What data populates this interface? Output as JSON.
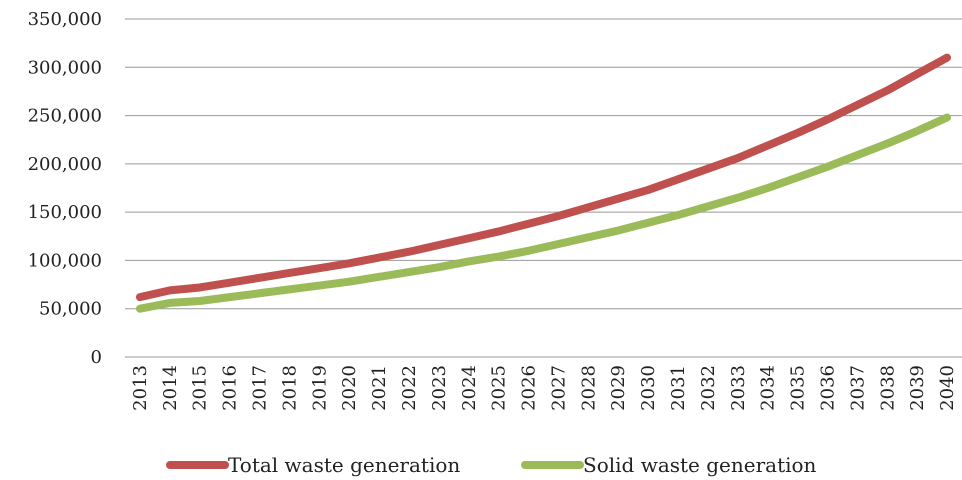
{
  "chart_data": {
    "type": "line",
    "categories": [
      "2013",
      "2014",
      "2015",
      "2016",
      "2017",
      "2018",
      "2019",
      "2020",
      "2021",
      "2022",
      "2023",
      "2024",
      "2025",
      "2026",
      "2027",
      "2028",
      "2029",
      "2030",
      "2031",
      "2032",
      "2033",
      "2034",
      "2035",
      "2036",
      "2037",
      "2038",
      "2039",
      "2040"
    ],
    "series": [
      {
        "name": "Total waste generation",
        "color": "#c0504d",
        "values": [
          62000,
          69000,
          72000,
          77000,
          82000,
          87000,
          92000,
          97000,
          103000,
          109000,
          116000,
          123000,
          130000,
          138000,
          146000,
          155000,
          164000,
          173000,
          184000,
          195000,
          206000,
          219000,
          232000,
          246000,
          261000,
          276000,
          293000,
          310000
        ]
      },
      {
        "name": "Solid waste generation",
        "color": "#9bbb59",
        "values": [
          50000,
          56000,
          58000,
          62000,
          66000,
          70000,
          74000,
          78000,
          83000,
          88000,
          93000,
          99000,
          104000,
          110000,
          117000,
          124000,
          131000,
          139000,
          147000,
          156000,
          165000,
          175000,
          186000,
          197000,
          209000,
          221000,
          234000,
          248000
        ]
      }
    ],
    "ylim": [
      0,
      350000
    ],
    "yticks": [
      0,
      {
        "value": 50000,
        "label": "50,000"
      },
      {
        "value": 100000,
        "label": "100,000"
      },
      {
        "value": 150000,
        "label": "150,000"
      },
      {
        "value": 200000,
        "label": "200,000"
      },
      {
        "value": 250000,
        "label": "250,000"
      },
      {
        "value": 300000,
        "label": "300,000"
      },
      {
        "value": 350000,
        "label": "350,000"
      }
    ],
    "grid": true
  }
}
